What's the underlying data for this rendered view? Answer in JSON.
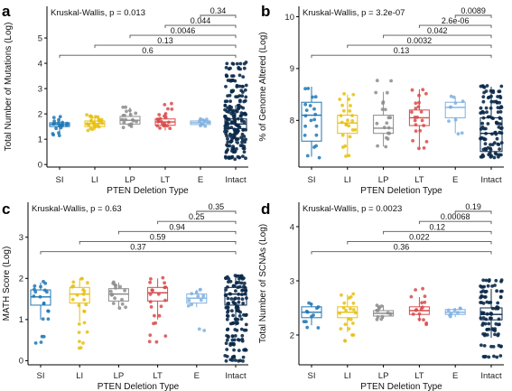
{
  "colors": {
    "SI": "#1f77b4",
    "LI": "#e6c010",
    "LP": "#8c8c8c",
    "LT": "#d94a4a",
    "E": "#7fb0e0",
    "Intact": "#0b2a4a"
  },
  "chart_data": [
    {
      "type": "box",
      "panel": "a",
      "stat_label": "Kruskal-Wallis, p = 0.013",
      "xlabel": "PTEN Deletion Type",
      "ylabel": "Total Number of Mutations (Log)",
      "categories": [
        "SI",
        "LI",
        "LP",
        "LT",
        "E",
        "Intact"
      ],
      "ylim": [
        -0.1,
        6.25
      ],
      "yticks": [
        0,
        1,
        2,
        3,
        4,
        5
      ],
      "comparisons": [
        {
          "from": "E",
          "label": "0.34"
        },
        {
          "from": "LT",
          "label": "0.044"
        },
        {
          "from": "LP",
          "label": "0.0046"
        },
        {
          "from": "LI",
          "label": "0.13"
        },
        {
          "from": "SI",
          "label": "0.6"
        }
      ],
      "boxes": {
        "SI": {
          "q1": 1.5,
          "median": 1.58,
          "q3": 1.65,
          "wlo": 1.25,
          "whi": 1.9,
          "points": [
            1.15,
            1.25,
            1.45,
            1.5,
            1.55,
            1.58,
            1.6,
            1.65,
            1.75,
            1.88
          ]
        },
        "LI": {
          "q1": 1.5,
          "median": 1.62,
          "q3": 1.72,
          "wlo": 1.35,
          "whi": 1.95,
          "points": [
            1.38,
            1.45,
            1.5,
            1.55,
            1.6,
            1.62,
            1.65,
            1.7,
            1.75,
            1.8,
            1.85,
            1.9,
            1.95
          ]
        },
        "LP": {
          "q1": 1.6,
          "median": 1.75,
          "q3": 1.9,
          "wlo": 1.5,
          "whi": 2.25,
          "points": [
            1.5,
            1.6,
            1.68,
            1.75,
            1.8,
            1.9,
            2.0,
            2.1,
            2.25
          ]
        },
        "LT": {
          "q1": 1.55,
          "median": 1.68,
          "q3": 1.8,
          "wlo": 1.35,
          "whi": 2.05,
          "points": [
            1.4,
            1.5,
            1.55,
            1.62,
            1.68,
            1.72,
            1.8,
            1.9,
            2.0,
            2.2,
            2.4
          ]
        },
        "E": {
          "q1": 1.58,
          "median": 1.65,
          "q3": 1.72,
          "wlo": 1.55,
          "whi": 1.8,
          "points": [
            1.55,
            1.62,
            1.68,
            1.75,
            1.8
          ]
        },
        "Intact": {
          "q1": 1.42,
          "median": 1.6,
          "q3": 1.8,
          "wlo": 0.85,
          "whi": 2.35,
          "points": [
            0.25,
            0.3,
            0.5,
            0.6,
            0.75,
            0.9,
            1.0,
            1.1,
            1.2,
            1.3,
            1.4,
            1.5,
            1.6,
            1.7,
            1.8,
            1.9,
            2.0,
            2.1,
            2.2,
            2.3,
            2.5,
            2.7,
            2.9,
            3.1,
            3.3,
            3.5,
            3.8,
            4.0
          ]
        }
      }
    },
    {
      "type": "box",
      "panel": "b",
      "stat_label": "Kruskal-Wallis, p = 3.2e-07",
      "xlabel": "PTEN Deletion Type",
      "ylabel": "% of Genome Altered (Log)",
      "categories": [
        "SI",
        "LI",
        "LP",
        "LT",
        "E",
        "Intact"
      ],
      "ylim": [
        7.1,
        10.2
      ],
      "yticks": [
        8,
        9,
        10
      ],
      "comparisons": [
        {
          "from": "E",
          "label": "0.0089"
        },
        {
          "from": "LT",
          "label": "2.6e-06"
        },
        {
          "from": "LP",
          "label": "0.042"
        },
        {
          "from": "LI",
          "label": "0.0032"
        },
        {
          "from": "SI",
          "label": "0.13"
        }
      ],
      "boxes": {
        "SI": {
          "q1": 7.6,
          "median": 8.1,
          "q3": 8.35,
          "wlo": 7.3,
          "whi": 8.65,
          "points": [
            7.3,
            7.5,
            7.7,
            7.9,
            8.0,
            8.1,
            8.2,
            8.3,
            8.45,
            8.6
          ]
        },
        "LI": {
          "q1": 7.75,
          "median": 7.95,
          "q3": 8.1,
          "wlo": 7.3,
          "whi": 8.5,
          "points": [
            7.3,
            7.5,
            7.7,
            7.8,
            7.9,
            7.95,
            8.0,
            8.1,
            8.2,
            8.3,
            8.4,
            8.5
          ]
        },
        "LP": {
          "q1": 7.75,
          "median": 7.85,
          "q3": 8.1,
          "wlo": 7.5,
          "whi": 8.55,
          "points": [
            7.5,
            7.65,
            7.75,
            7.85,
            7.95,
            8.05,
            8.2,
            8.35,
            8.55,
            8.75
          ]
        },
        "LT": {
          "q1": 7.9,
          "median": 8.05,
          "q3": 8.2,
          "wlo": 7.45,
          "whi": 8.6,
          "points": [
            7.45,
            7.6,
            7.8,
            7.9,
            8.0,
            8.05,
            8.15,
            8.25,
            8.35,
            8.5,
            8.6
          ]
        },
        "E": {
          "q1": 8.05,
          "median": 8.25,
          "q3": 8.35,
          "wlo": 7.75,
          "whi": 8.45,
          "points": [
            7.75,
            8.0,
            8.25,
            8.35,
            8.45
          ]
        },
        "Intact": {
          "q1": 7.4,
          "median": 7.75,
          "q3": 8.05,
          "wlo": 7.3,
          "whi": 8.65,
          "points": [
            7.3,
            7.35,
            7.45,
            7.55,
            7.65,
            7.75,
            7.85,
            7.95,
            8.05,
            8.15,
            8.25,
            8.35,
            8.45,
            8.55,
            8.65
          ]
        }
      }
    },
    {
      "type": "box",
      "panel": "c",
      "stat_label": "Kruskal-Wallis, p = 0.63",
      "xlabel": "PTEN Deletion Type",
      "ylabel": "MATH Score (Log)",
      "categories": [
        "SI",
        "LI",
        "LP",
        "LT",
        "E",
        "Intact"
      ],
      "ylim": [
        -0.1,
        3.85
      ],
      "yticks": [
        0,
        1,
        2,
        3
      ],
      "comparisons": [
        {
          "from": "E",
          "label": "0.35"
        },
        {
          "from": "LT",
          "label": "0.25"
        },
        {
          "from": "LP",
          "label": "0.94"
        },
        {
          "from": "LI",
          "label": "0.59"
        },
        {
          "from": "SI",
          "label": "0.37"
        }
      ],
      "boxes": {
        "SI": {
          "q1": 1.35,
          "median": 1.55,
          "q3": 1.72,
          "wlo": 1.0,
          "whi": 1.9,
          "points": [
            0.45,
            0.6,
            1.0,
            1.2,
            1.4,
            1.55,
            1.65,
            1.72,
            1.8,
            1.9
          ]
        },
        "LI": {
          "q1": 1.4,
          "median": 1.62,
          "q3": 1.78,
          "wlo": 0.95,
          "whi": 2.0,
          "points": [
            0.3,
            0.45,
            0.7,
            0.9,
            1.2,
            1.35,
            1.5,
            1.6,
            1.7,
            1.8,
            1.9,
            2.0
          ]
        },
        "LP": {
          "q1": 1.45,
          "median": 1.62,
          "q3": 1.75,
          "wlo": 1.3,
          "whi": 1.9,
          "points": [
            1.3,
            1.4,
            1.5,
            1.6,
            1.7,
            1.78,
            1.85,
            1.9
          ]
        },
        "LT": {
          "q1": 1.45,
          "median": 1.65,
          "q3": 1.78,
          "wlo": 1.0,
          "whi": 2.0,
          "points": [
            0.45,
            0.6,
            0.9,
            1.1,
            1.3,
            1.45,
            1.6,
            1.7,
            1.8,
            1.9,
            2.0
          ]
        },
        "E": {
          "q1": 1.4,
          "median": 1.52,
          "q3": 1.62,
          "wlo": 1.3,
          "whi": 1.72,
          "points": [
            0.75,
            1.35,
            1.45,
            1.55,
            1.65,
            1.72
          ]
        },
        "Intact": {
          "q1": 1.35,
          "median": 1.62,
          "q3": 1.78,
          "wlo": 0.85,
          "whi": 2.05,
          "points": [
            0.0,
            0.1,
            0.25,
            0.4,
            0.5,
            0.6,
            0.75,
            0.9,
            1.0,
            1.1,
            1.2,
            1.3,
            1.4,
            1.5,
            1.6,
            1.7,
            1.8,
            1.9,
            2.0,
            2.05
          ]
        }
      }
    },
    {
      "type": "box",
      "panel": "d",
      "stat_label": "Kruskal-Wallis, p = 0.0023",
      "xlabel": "PTEN Deletion Type",
      "ylabel": "Total Number of SCNAs (Log)",
      "categories": [
        "SI",
        "LI",
        "LP",
        "LT",
        "E",
        "Intact"
      ],
      "ylim": [
        1.45,
        4.45
      ],
      "yticks": [
        2,
        3,
        4
      ],
      "comparisons": [
        {
          "from": "E",
          "label": "0.19"
        },
        {
          "from": "LT",
          "label": "0.00068"
        },
        {
          "from": "LP",
          "label": "0.12"
        },
        {
          "from": "LI",
          "label": "0.022"
        },
        {
          "from": "SI",
          "label": "0.36"
        }
      ],
      "boxes": {
        "SI": {
          "q1": 2.32,
          "median": 2.42,
          "q3": 2.52,
          "wlo": 2.18,
          "whi": 2.58,
          "points": [
            2.15,
            2.25,
            2.35,
            2.42,
            2.5,
            2.58
          ]
        },
        "LI": {
          "q1": 2.32,
          "median": 2.42,
          "q3": 2.52,
          "wlo": 2.05,
          "whi": 2.75,
          "points": [
            1.9,
            2.0,
            2.1,
            2.2,
            2.3,
            2.4,
            2.45,
            2.5,
            2.6,
            2.7,
            2.75
          ]
        },
        "LP": {
          "q1": 2.35,
          "median": 2.4,
          "q3": 2.45,
          "wlo": 2.3,
          "whi": 2.55,
          "points": [
            2.3,
            2.35,
            2.4,
            2.45,
            2.5,
            2.55
          ]
        },
        "LT": {
          "q1": 2.38,
          "median": 2.45,
          "q3": 2.52,
          "wlo": 2.25,
          "whi": 2.7,
          "points": [
            2.2,
            2.3,
            2.4,
            2.45,
            2.5,
            2.6,
            2.7,
            2.85
          ]
        },
        "E": {
          "q1": 2.38,
          "median": 2.42,
          "q3": 2.47,
          "wlo": 2.33,
          "whi": 2.5,
          "points": [
            2.35,
            2.4,
            2.45,
            2.5
          ]
        },
        "Intact": {
          "q1": 2.28,
          "median": 2.38,
          "q3": 2.5,
          "wlo": 1.95,
          "whi": 2.85,
          "points": [
            1.6,
            1.8,
            2.0,
            2.1,
            2.2,
            2.3,
            2.4,
            2.5,
            2.6,
            2.7,
            2.8,
            2.9,
            3.0
          ]
        }
      }
    }
  ]
}
